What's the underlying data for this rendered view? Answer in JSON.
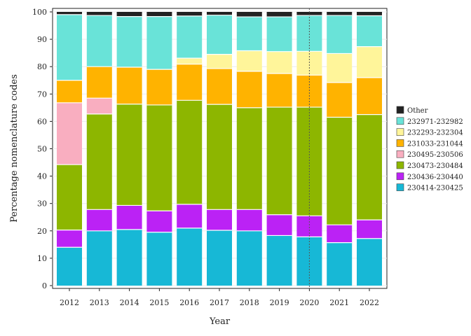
{
  "chart_data": {
    "type": "bar",
    "stacked": true,
    "xlabel": "Year",
    "ylabel": "Percentage nomenclature codes",
    "ylim": [
      0,
      100
    ],
    "yticks": [
      0,
      10,
      20,
      30,
      40,
      50,
      60,
      70,
      80,
      90,
      100
    ],
    "categories": [
      "2012",
      "2013",
      "2014",
      "2015",
      "2016",
      "2017",
      "2018",
      "2019",
      "2020",
      "2021",
      "2022"
    ],
    "reference_line": {
      "x": "2020",
      "style": "dotted"
    },
    "legend_position": "right",
    "series": [
      {
        "name": "230414-230425",
        "color": "#17b8d6",
        "values": [
          14.0,
          20.0,
          20.5,
          19.5,
          21.0,
          20.2,
          20.0,
          18.3,
          17.8,
          15.7,
          17.2
        ]
      },
      {
        "name": "230436-230440",
        "color": "#bb22f5",
        "values": [
          6.3,
          7.8,
          8.8,
          7.8,
          8.7,
          7.6,
          7.8,
          7.6,
          7.7,
          6.5,
          6.8
        ]
      },
      {
        "name": "230473-230484",
        "color": "#8db600",
        "values": [
          23.9,
          34.9,
          37.0,
          38.7,
          38.0,
          38.4,
          37.2,
          39.3,
          39.7,
          39.3,
          38.5
        ]
      },
      {
        "name": "230495-230506",
        "color": "#f9aec0",
        "values": [
          22.6,
          5.8,
          0,
          0,
          0,
          0,
          0,
          0,
          0,
          0,
          0
        ]
      },
      {
        "name": "231033-231044",
        "color": "#ffb300",
        "values": [
          8.2,
          11.5,
          13.5,
          13.0,
          13.2,
          13.1,
          13.3,
          12.3,
          11.7,
          12.7,
          13.5
        ]
      },
      {
        "name": "232293-232304",
        "color": "#fff59a",
        "values": [
          0,
          0,
          0,
          0,
          2.2,
          5.2,
          7.5,
          8.0,
          8.7,
          10.6,
          11.3
        ]
      },
      {
        "name": "232971-232982",
        "color": "#69e3d8",
        "values": [
          24.0,
          18.7,
          18.5,
          19.3,
          15.4,
          14.3,
          12.4,
          12.7,
          13.1,
          13.9,
          11.3
        ]
      },
      {
        "name": "Other",
        "color": "#222222",
        "values": [
          1.0,
          1.3,
          1.7,
          1.7,
          1.5,
          1.2,
          1.8,
          1.8,
          1.3,
          1.3,
          1.4
        ]
      }
    ],
    "legend_order": [
      "Other",
      "232971-232982",
      "232293-232304",
      "231033-231044",
      "230495-230506",
      "230473-230484",
      "230436-230440",
      "230414-230425"
    ]
  }
}
